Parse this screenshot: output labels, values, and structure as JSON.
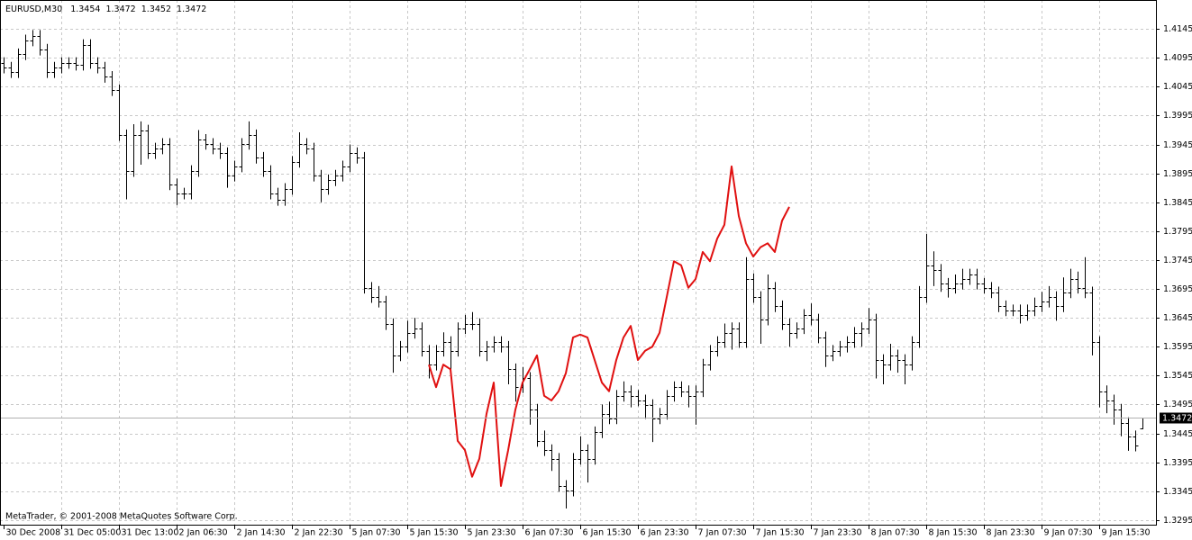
{
  "chart_data": {
    "type": "ohlc",
    "symbol": "EURUSD,M30",
    "copyright": "MetaTrader, © 2001-2008 MetaQuotes Software Corp.",
    "color": "#000000",
    "overlay_color": "#e01010",
    "grid": true,
    "ylim": [
      1.3287,
      1.4195
    ],
    "yticks": [
      1.4145,
      1.4095,
      1.4045,
      1.3995,
      1.3945,
      1.3895,
      1.3845,
      1.3795,
      1.3745,
      1.3695,
      1.3645,
      1.3595,
      1.3545,
      1.3495,
      1.3445,
      1.3395,
      1.3345,
      1.3295
    ],
    "xticks": [
      {
        "value": 0,
        "label": "30 Dec 2008"
      },
      {
        "value": 8,
        "label": "31 Dec 05:00"
      },
      {
        "value": 16,
        "label": "31 Dec 13:00"
      },
      {
        "value": 24,
        "label": "2 Jan 06:30"
      },
      {
        "value": 32,
        "label": "2 Jan 14:30"
      },
      {
        "value": 40,
        "label": "2 Jan 22:30"
      },
      {
        "value": 48,
        "label": "5 Jan 07:30"
      },
      {
        "value": 56,
        "label": "5 Jan 15:30"
      },
      {
        "value": 64,
        "label": "5 Jan 23:30"
      },
      {
        "value": 72,
        "label": "6 Jan 07:30"
      },
      {
        "value": 80,
        "label": "6 Jan 15:30"
      },
      {
        "value": 88,
        "label": "6 Jan 23:30"
      },
      {
        "value": 96,
        "label": "7 Jan 07:30"
      },
      {
        "value": 104,
        "label": "7 Jan 15:30"
      },
      {
        "value": 112,
        "label": "7 Jan 23:30"
      },
      {
        "value": 120,
        "label": "8 Jan 07:30"
      },
      {
        "value": 128,
        "label": "8 Jan 15:30"
      },
      {
        "value": 136,
        "label": "8 Jan 23:30"
      },
      {
        "value": 144,
        "label": "9 Jan 07:30"
      },
      {
        "value": 152,
        "label": "9 Jan 15:30"
      }
    ],
    "open": [
      1.4086,
      1.4078,
      1.407,
      1.4101,
      1.4125,
      1.4133,
      1.4109,
      1.407,
      1.4078,
      1.4086,
      1.4086,
      1.4083,
      1.4117,
      1.4086,
      1.4078,
      1.4062,
      1.4039,
      1.3961,
      1.3899,
      1.3961,
      1.3969,
      1.393,
      1.3938,
      1.3946,
      1.3876,
      1.386,
      1.386,
      1.3899,
      1.3953,
      1.3946,
      1.3938,
      1.393,
      1.3891,
      1.3907,
      1.3946,
      1.3961,
      1.3922,
      1.3899,
      1.386,
      1.3849,
      1.3868,
      1.3915,
      1.3946,
      1.3938,
      1.3891,
      1.3868,
      1.3883,
      1.3891,
      1.3907,
      1.393,
      1.3922,
      1.3697,
      1.3681,
      1.3673,
      1.3634,
      1.358,
      1.3595,
      1.3619,
      1.3627,
      1.3588,
      1.3564,
      1.3588,
      1.3603,
      1.3588,
      1.3627,
      1.3634,
      1.3634,
      1.3588,
      1.3595,
      1.3603,
      1.3595,
      1.3556,
      1.3525,
      1.3541,
      1.3486,
      1.3432,
      1.3416,
      1.3401,
      1.3354,
      1.3346,
      1.3401,
      1.3416,
      1.3401,
      1.3447,
      1.3479,
      1.3471,
      1.351,
      1.3518,
      1.351,
      1.3502,
      1.3494,
      1.3471,
      1.3479,
      1.351,
      1.3525,
      1.3518,
      1.351,
      1.3518,
      1.3564,
      1.3588,
      1.3603,
      1.3619,
      1.3627,
      1.3603,
      1.3712,
      1.3681,
      1.3642,
      1.3697,
      1.3665,
      1.3634,
      1.3619,
      1.3627,
      1.365,
      1.3642,
      1.3611,
      1.358,
      1.3588,
      1.3595,
      1.3603,
      1.3619,
      1.3627,
      1.3642,
      1.3572,
      1.3564,
      1.358,
      1.3572,
      1.3564,
      1.3603,
      1.3681,
      1.3736,
      1.3728,
      1.3704,
      1.3697,
      1.3704,
      1.3712,
      1.372,
      1.3704,
      1.3697,
      1.3689,
      1.3665,
      1.3658,
      1.3658,
      1.365,
      1.3658,
      1.3665,
      1.3673,
      1.3681,
      1.3665,
      1.3689,
      1.3712,
      1.3697,
      1.3689,
      1.3603,
      1.3518,
      1.3502,
      1.3486,
      1.3463,
      1.344,
      1.3454
    ],
    "high": [
      1.4096,
      1.4088,
      1.4111,
      1.4135,
      1.4143,
      1.4143,
      1.4119,
      1.4088,
      1.4096,
      1.4096,
      1.4096,
      1.4127,
      1.4127,
      1.4096,
      1.4088,
      1.4072,
      1.4049,
      1.3971,
      1.398,
      1.3985,
      1.3979,
      1.3948,
      1.3956,
      1.3956,
      1.3886,
      1.387,
      1.3909,
      1.397,
      1.3963,
      1.3956,
      1.3948,
      1.394,
      1.3917,
      1.3956,
      1.3985,
      1.3971,
      1.3932,
      1.3909,
      1.387,
      1.3878,
      1.3925,
      1.3966,
      1.3956,
      1.3948,
      1.3901,
      1.3893,
      1.3901,
      1.3917,
      1.3945,
      1.394,
      1.3932,
      1.3707,
      1.37,
      1.3683,
      1.3644,
      1.3605,
      1.364,
      1.3645,
      1.3637,
      1.3598,
      1.3598,
      1.362,
      1.3613,
      1.3637,
      1.365,
      1.3655,
      1.3644,
      1.3605,
      1.3613,
      1.3613,
      1.3605,
      1.3566,
      1.356,
      1.3551,
      1.3496,
      1.345,
      1.3426,
      1.3411,
      1.3364,
      1.3411,
      1.344,
      1.3426,
      1.3457,
      1.3495,
      1.35,
      1.352,
      1.3535,
      1.3528,
      1.352,
      1.3512,
      1.3504,
      1.3489,
      1.352,
      1.3535,
      1.3535,
      1.3528,
      1.3528,
      1.3574,
      1.3598,
      1.3613,
      1.3635,
      1.3637,
      1.3637,
      1.375,
      1.3722,
      1.3691,
      1.372,
      1.3707,
      1.3675,
      1.3644,
      1.3637,
      1.366,
      1.367,
      1.3652,
      1.3621,
      1.3598,
      1.3605,
      1.3613,
      1.3629,
      1.3637,
      1.3662,
      1.3652,
      1.3582,
      1.36,
      1.359,
      1.3582,
      1.3613,
      1.37,
      1.379,
      1.376,
      1.3738,
      1.3714,
      1.372,
      1.373,
      1.373,
      1.373,
      1.3714,
      1.3707,
      1.3699,
      1.3675,
      1.3668,
      1.3668,
      1.3668,
      1.368,
      1.369,
      1.37,
      1.3691,
      1.3715,
      1.373,
      1.3725,
      1.375,
      1.3699,
      1.3613,
      1.3528,
      1.3512,
      1.3496,
      1.3473,
      1.345,
      1.3472
    ],
    "low": [
      1.4068,
      1.406,
      1.406,
      1.4091,
      1.4115,
      1.4099,
      1.406,
      1.406,
      1.4068,
      1.4076,
      1.4073,
      1.4073,
      1.4076,
      1.4068,
      1.4052,
      1.4029,
      1.3951,
      1.385,
      1.3889,
      1.391,
      1.392,
      1.392,
      1.3928,
      1.3866,
      1.384,
      1.385,
      1.385,
      1.3889,
      1.3936,
      1.3928,
      1.392,
      1.387,
      1.3881,
      1.3897,
      1.3936,
      1.3912,
      1.3889,
      1.385,
      1.3839,
      1.3839,
      1.3858,
      1.3905,
      1.3928,
      1.3881,
      1.3845,
      1.3858,
      1.3873,
      1.3881,
      1.3897,
      1.3912,
      1.3687,
      1.3671,
      1.3663,
      1.3624,
      1.355,
      1.357,
      1.3585,
      1.3609,
      1.3578,
      1.354,
      1.3554,
      1.3578,
      1.355,
      1.3578,
      1.3617,
      1.3624,
      1.3578,
      1.357,
      1.3585,
      1.3585,
      1.353,
      1.35,
      1.3515,
      1.346,
      1.3422,
      1.3406,
      1.338,
      1.3344,
      1.3315,
      1.3336,
      1.3391,
      1.336,
      1.3391,
      1.3437,
      1.3461,
      1.3461,
      1.35,
      1.349,
      1.3492,
      1.347,
      1.343,
      1.3461,
      1.3469,
      1.35,
      1.3508,
      1.349,
      1.346,
      1.3508,
      1.3554,
      1.3578,
      1.3593,
      1.359,
      1.3593,
      1.3593,
      1.3671,
      1.36,
      1.3632,
      1.3655,
      1.3624,
      1.3595,
      1.3609,
      1.3617,
      1.3632,
      1.3601,
      1.356,
      1.357,
      1.3578,
      1.3585,
      1.3593,
      1.3595,
      1.3617,
      1.354,
      1.353,
      1.3554,
      1.355,
      1.353,
      1.3554,
      1.3593,
      1.3671,
      1.37,
      1.369,
      1.368,
      1.3687,
      1.3694,
      1.3702,
      1.3694,
      1.3687,
      1.3679,
      1.3655,
      1.3648,
      1.3648,
      1.3635,
      1.364,
      1.3648,
      1.3655,
      1.3663,
      1.364,
      1.3655,
      1.3679,
      1.3687,
      1.3679,
      1.358,
      1.349,
      1.348,
      1.346,
      1.344,
      1.3415,
      1.3414,
      1.3452
    ],
    "close": [
      1.4078,
      1.407,
      1.4101,
      1.4125,
      1.4133,
      1.4109,
      1.407,
      1.4078,
      1.4086,
      1.4086,
      1.4083,
      1.4117,
      1.4086,
      1.4078,
      1.4062,
      1.4039,
      1.3961,
      1.3899,
      1.3961,
      1.3969,
      1.393,
      1.3938,
      1.3946,
      1.3876,
      1.386,
      1.386,
      1.3899,
      1.3953,
      1.3946,
      1.3938,
      1.393,
      1.3891,
      1.3907,
      1.3946,
      1.3961,
      1.3922,
      1.3899,
      1.386,
      1.3849,
      1.3868,
      1.3915,
      1.3946,
      1.3938,
      1.3891,
      1.3868,
      1.3883,
      1.3891,
      1.3907,
      1.393,
      1.3922,
      1.3697,
      1.3681,
      1.3673,
      1.3634,
      1.358,
      1.3595,
      1.3619,
      1.3627,
      1.3588,
      1.3564,
      1.3588,
      1.3603,
      1.3588,
      1.3627,
      1.3634,
      1.3634,
      1.3588,
      1.3595,
      1.3603,
      1.3595,
      1.3556,
      1.3525,
      1.3541,
      1.3486,
      1.3432,
      1.3416,
      1.3401,
      1.3354,
      1.3346,
      1.3401,
      1.3416,
      1.3401,
      1.3447,
      1.3479,
      1.3471,
      1.351,
      1.3518,
      1.351,
      1.3502,
      1.3494,
      1.3471,
      1.3479,
      1.351,
      1.3525,
      1.3518,
      1.351,
      1.3518,
      1.3564,
      1.3588,
      1.3603,
      1.3619,
      1.3627,
      1.3603,
      1.3712,
      1.3681,
      1.3642,
      1.3697,
      1.3665,
      1.3634,
      1.3619,
      1.3627,
      1.365,
      1.3642,
      1.3611,
      1.358,
      1.3588,
      1.3595,
      1.3603,
      1.3619,
      1.3627,
      1.3642,
      1.3572,
      1.3564,
      1.358,
      1.3572,
      1.3564,
      1.3603,
      1.3681,
      1.3736,
      1.3728,
      1.3704,
      1.3697,
      1.3704,
      1.3712,
      1.372,
      1.3704,
      1.3697,
      1.3689,
      1.3665,
      1.3658,
      1.3658,
      1.365,
      1.3658,
      1.3665,
      1.3673,
      1.3681,
      1.3665,
      1.3689,
      1.3712,
      1.3697,
      1.3689,
      1.3603,
      1.3518,
      1.3502,
      1.3486,
      1.3463,
      1.344,
      1.3424,
      1.3472
    ],
    "overlay_values": [
      null,
      null,
      null,
      null,
      null,
      null,
      null,
      null,
      null,
      null,
      null,
      null,
      null,
      null,
      null,
      null,
      null,
      null,
      null,
      null,
      null,
      null,
      null,
      null,
      null,
      null,
      null,
      null,
      null,
      null,
      null,
      null,
      null,
      null,
      null,
      null,
      null,
      null,
      null,
      null,
      null,
      null,
      null,
      null,
      null,
      null,
      null,
      null,
      null,
      null,
      null,
      null,
      null,
      null,
      null,
      null,
      null,
      null,
      null,
      1.3564,
      1.3525,
      1.3564,
      1.3556,
      1.3432,
      1.3416,
      1.337,
      1.3401,
      1.3479,
      1.3533,
      1.3354,
      1.3416,
      1.3486,
      1.3533,
      1.3556,
      1.358,
      1.351,
      1.3502,
      1.3518,
      1.3549,
      1.3611,
      1.3616,
      1.3611,
      1.3572,
      1.3533,
      1.3518,
      1.3572,
      1.3611,
      1.3631,
      1.3572,
      1.3588,
      1.3595,
      1.3619,
      1.3681,
      1.3743,
      1.3736,
      1.3697,
      1.3712,
      1.3759,
      1.3743,
      1.3782,
      1.3806,
      1.3907,
      1.3821,
      1.3774,
      1.3751,
      1.3767,
      1.3774,
      1.3759,
      1.3813,
      1.3837,
      null,
      null,
      null,
      null,
      null,
      null,
      null,
      null,
      null,
      null,
      null,
      null,
      null,
      null,
      null,
      null,
      null,
      null,
      null,
      null,
      null,
      null,
      null,
      null,
      null,
      null,
      null,
      null,
      null,
      null,
      null,
      null,
      null,
      null,
      null,
      null,
      null,
      null,
      null,
      null,
      null,
      null,
      null,
      null,
      null,
      null,
      null,
      null,
      null
    ]
  }
}
